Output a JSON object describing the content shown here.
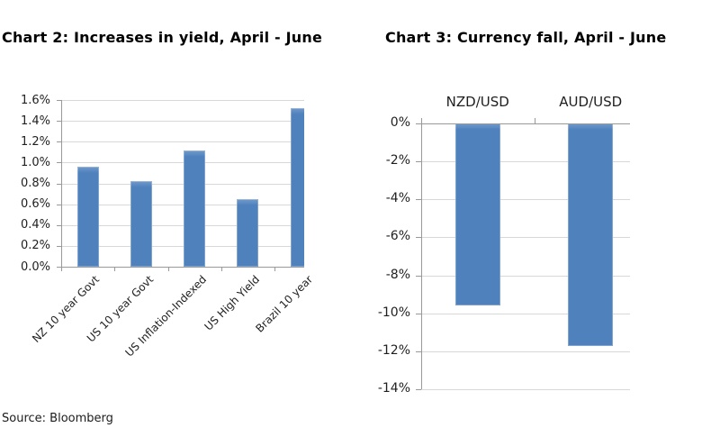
{
  "chart_data": [
    {
      "id": "yield-chart",
      "type": "bar",
      "title": "Chart 2: Increases in yield, April - June",
      "categories": [
        "NZ 10 year Govt",
        "US 10 year Govt",
        "US Inflation-Indexed",
        "US High Yield",
        "Brazil 10 year"
      ],
      "values": [
        0.96,
        0.82,
        1.12,
        0.65,
        1.52
      ],
      "unit": "%",
      "ylim": [
        0,
        1.6
      ],
      "ytick_step": 0.2,
      "ytick_labels": [
        "1.6%",
        "1.4%",
        "1.2%",
        "1.0%",
        "0.8%",
        "0.6%",
        "0.4%",
        "0.2%",
        "0.0%"
      ],
      "xlabel": "",
      "ylabel": "",
      "grid": true,
      "legend": "none",
      "category_label_rotation_deg": 45
    },
    {
      "id": "currency-chart",
      "type": "bar",
      "title": "Chart 3: Currency fall, April - June",
      "categories": [
        "NZD/USD",
        "AUD/USD"
      ],
      "values": [
        -9.6,
        -11.7
      ],
      "unit": "%",
      "ylim": [
        -14,
        0
      ],
      "ytick_step": 2,
      "ytick_labels": [
        "0%",
        "-2%",
        "-4%",
        "-6%",
        "-8%",
        "-10%",
        "-12%",
        "-14%"
      ],
      "xlabel": "",
      "ylabel": "",
      "grid": true,
      "legend": "none",
      "category_label_position": "above"
    }
  ],
  "source_note": "Source: Bloomberg",
  "colors": {
    "bar": "#4f81bd",
    "gridline": "#d8d8d8",
    "axis": "#999999",
    "text": "#1f1f1f",
    "title": "#000000",
    "background": "#ffffff"
  }
}
